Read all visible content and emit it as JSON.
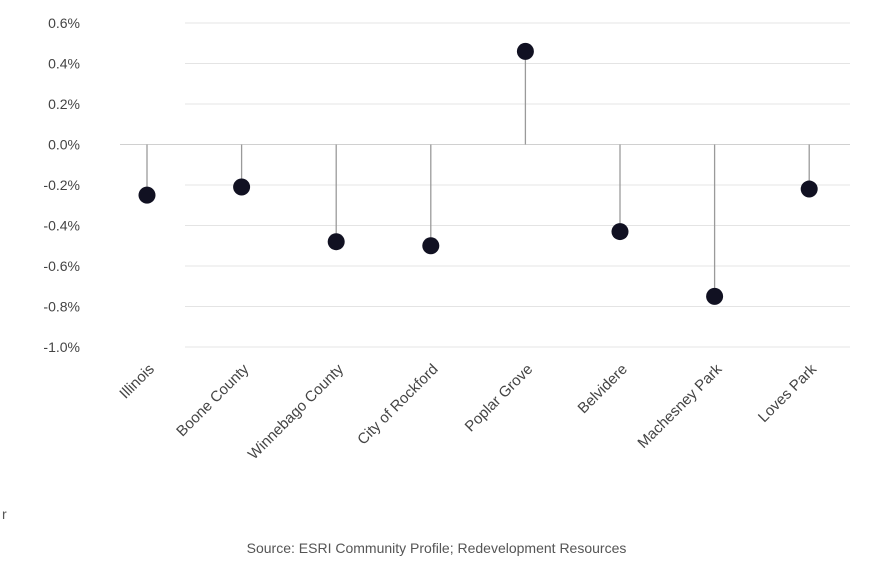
{
  "chart_data": {
    "type": "lollipop",
    "categories": [
      "Illinois",
      "Boone County",
      "Winnebago County",
      "City of Rockford",
      "Poplar Grove",
      "Belvidere",
      "Machesney Park",
      "Loves Park"
    ],
    "values": [
      -0.25,
      -0.21,
      -0.48,
      -0.5,
      0.46,
      -0.43,
      -0.75,
      -0.22
    ],
    "yticks": [
      "0.6%",
      "0.4%",
      "0.2%",
      "0.0%",
      "-0.2%",
      "-0.4%",
      "-0.6%",
      "-0.8%",
      "-1.0%"
    ],
    "ylim": [
      -1.0,
      0.6
    ],
    "grid": true,
    "marker_color": "#111122",
    "stem_color": "#9a9a9a",
    "grid_color": "#e4e4e4",
    "source": "Source: ESRI Community Profile; Redevelopment Resources"
  },
  "stray_text": "r"
}
